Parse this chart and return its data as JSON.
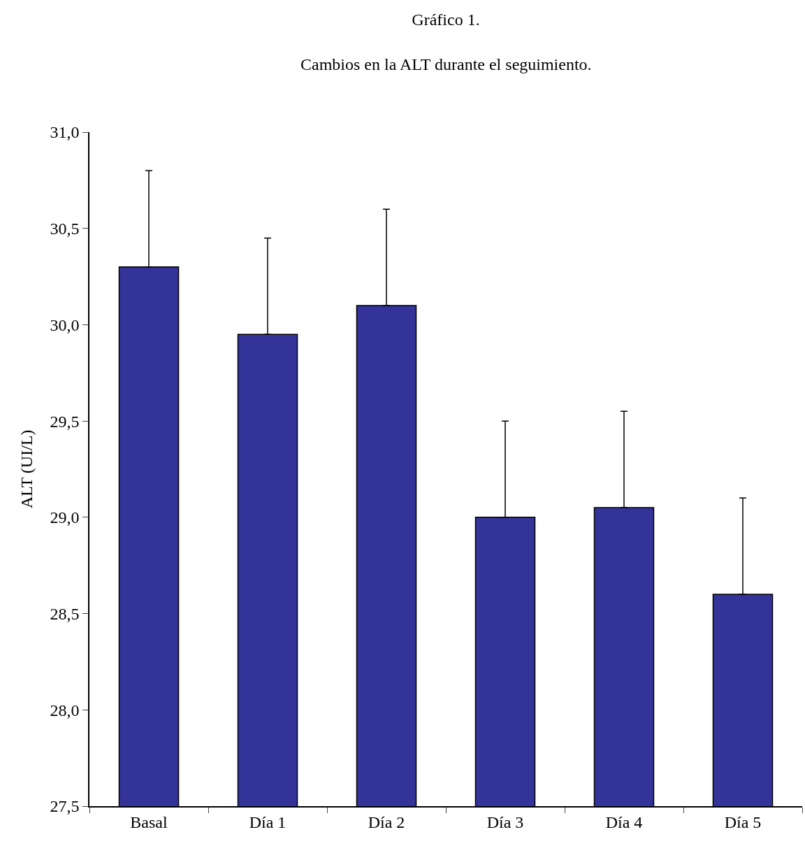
{
  "chart_data": {
    "type": "bar",
    "title": "Gráfico 1.",
    "subtitle": "Cambios en la ALT durante el seguimiento.",
    "ylabel": "ALT (UI/L)",
    "categories": [
      "Basal",
      "Día 1",
      "Día 2",
      "Día 3",
      "Día 4",
      "Día 5"
    ],
    "values": [
      30.3,
      29.95,
      30.1,
      29.0,
      29.05,
      28.6
    ],
    "errors": [
      [
        30.3,
        30.8
      ],
      [
        29.95,
        30.45
      ],
      [
        30.1,
        30.6
      ],
      [
        29.0,
        29.5
      ],
      [
        29.05,
        29.55
      ],
      [
        28.6,
        29.1
      ]
    ],
    "color": "#333399",
    "ylim": [
      27.5,
      31.0
    ],
    "yticks": [
      {
        "value": 27.5,
        "label": "27,5"
      },
      {
        "value": 28,
        "label": "28,0"
      },
      {
        "value": 28.5,
        "label": "28,5"
      },
      {
        "value": 29,
        "label": "29,0"
      },
      {
        "value": 29.5,
        "label": "29,5"
      },
      {
        "value": 30,
        "label": "30,0"
      },
      {
        "value": 30.5,
        "label": "30,5"
      },
      {
        "value": 31,
        "label": "31,0"
      }
    ],
    "grid": false,
    "legend": false
  }
}
